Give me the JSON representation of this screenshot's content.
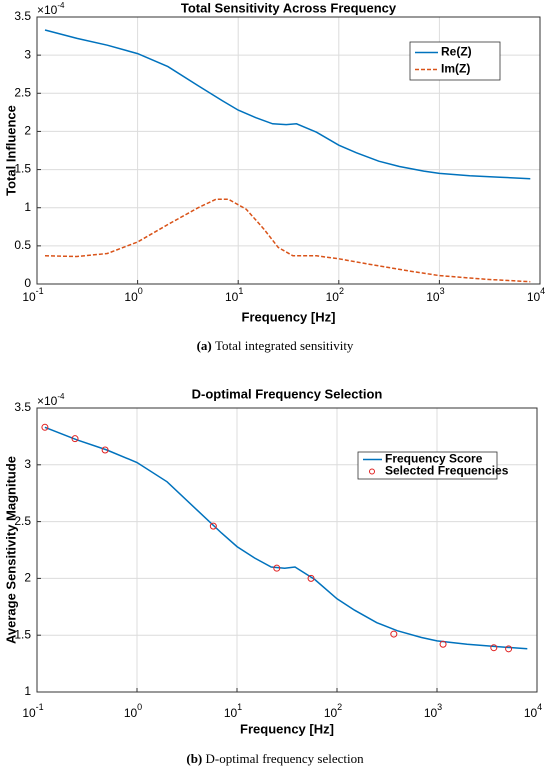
{
  "chart_data": [
    {
      "type": "line",
      "title": "Total Sensitivity Across Frequency",
      "xlabel": "Frequency [Hz]",
      "ylabel": "Total Influence",
      "y_exponent_base": "×10",
      "y_exponent": "-4",
      "log_x": true,
      "grid": true,
      "legend": "upper right",
      "xlim": [
        0.1,
        10000
      ],
      "xticks": [
        {
          "value": 0.1,
          "label": "10",
          "exponent": "-1"
        },
        {
          "value": 1,
          "label": "10",
          "exponent": "0"
        },
        {
          "value": 10,
          "label": "10",
          "exponent": "1"
        },
        {
          "value": 100,
          "label": "10",
          "exponent": "2"
        },
        {
          "value": 1000,
          "label": "10",
          "exponent": "3"
        },
        {
          "value": 10000,
          "label": "10",
          "exponent": "4"
        }
      ],
      "ylim": [
        0,
        3.5
      ],
      "yticks": [
        0,
        0.5,
        1,
        1.5,
        2,
        2.5,
        3,
        3.5
      ],
      "series": [
        {
          "name": "Re(Z)",
          "color": "#0072bd",
          "mode": "line",
          "dash": false,
          "x": [
            0.12,
            0.25,
            0.5,
            1,
            2,
            4,
            7,
            10,
            15,
            22,
            30,
            38,
            60,
            100,
            150,
            250,
            400,
            700,
            1000,
            2000,
            4000,
            8000
          ],
          "values": [
            3.33,
            3.22,
            3.13,
            3.02,
            2.85,
            2.6,
            2.4,
            2.28,
            2.18,
            2.1,
            2.09,
            2.1,
            1.99,
            1.82,
            1.72,
            1.61,
            1.54,
            1.48,
            1.45,
            1.42,
            1.4,
            1.38
          ]
        },
        {
          "name": "Im(Z)",
          "color": "#d95319",
          "mode": "line",
          "dash": true,
          "x": [
            0.12,
            0.25,
            0.5,
            1,
            2,
            4,
            6,
            8,
            12,
            18,
            25,
            35,
            60,
            100,
            200,
            500,
            1000,
            3000,
            8000
          ],
          "values": [
            0.37,
            0.36,
            0.4,
            0.55,
            0.78,
            1.0,
            1.11,
            1.11,
            0.98,
            0.72,
            0.48,
            0.37,
            0.37,
            0.33,
            0.26,
            0.17,
            0.11,
            0.06,
            0.03
          ]
        }
      ],
      "caption_label": "(a)",
      "caption": "Total integrated sensitivity"
    },
    {
      "type": "line",
      "title": "D-optimal Frequency Selection",
      "xlabel": "Frequency [Hz]",
      "ylabel": "Average Sensitivity Magnitude",
      "y_exponent_base": "×10",
      "y_exponent": "-4",
      "log_x": true,
      "grid": true,
      "legend": "upper right",
      "xlim": [
        0.1,
        10000
      ],
      "xticks": [
        {
          "value": 0.1,
          "label": "10",
          "exponent": "-1"
        },
        {
          "value": 1,
          "label": "10",
          "exponent": "0"
        },
        {
          "value": 10,
          "label": "10",
          "exponent": "1"
        },
        {
          "value": 100,
          "label": "10",
          "exponent": "2"
        },
        {
          "value": 1000,
          "label": "10",
          "exponent": "3"
        },
        {
          "value": 10000,
          "label": "10",
          "exponent": "4"
        }
      ],
      "ylim": [
        1,
        3.5
      ],
      "yticks": [
        1,
        1.5,
        2,
        2.5,
        3,
        3.5
      ],
      "series": [
        {
          "name": "Frequency Score",
          "color": "#0072bd",
          "mode": "line",
          "dash": false,
          "x": [
            0.12,
            0.25,
            0.5,
            1,
            2,
            4,
            7,
            10,
            15,
            22,
            30,
            38,
            60,
            100,
            150,
            250,
            400,
            700,
            1000,
            2000,
            4000,
            8000
          ],
          "values": [
            3.33,
            3.22,
            3.13,
            3.02,
            2.85,
            2.6,
            2.4,
            2.28,
            2.18,
            2.1,
            2.09,
            2.1,
            1.99,
            1.82,
            1.72,
            1.61,
            1.54,
            1.48,
            1.45,
            1.42,
            1.4,
            1.38
          ]
        },
        {
          "name": "Selected Frequencies",
          "color": "#e02020",
          "mode": "scatter",
          "x": [
            0.12,
            0.24,
            0.48,
            5.8,
            25,
            55,
            370,
            1150,
            3700,
            5200
          ],
          "values": [
            3.33,
            3.23,
            3.13,
            2.46,
            2.09,
            2.0,
            1.51,
            1.42,
            1.39,
            1.38
          ]
        }
      ],
      "caption_label": "(b)",
      "caption": "D-optimal frequency selection"
    }
  ]
}
